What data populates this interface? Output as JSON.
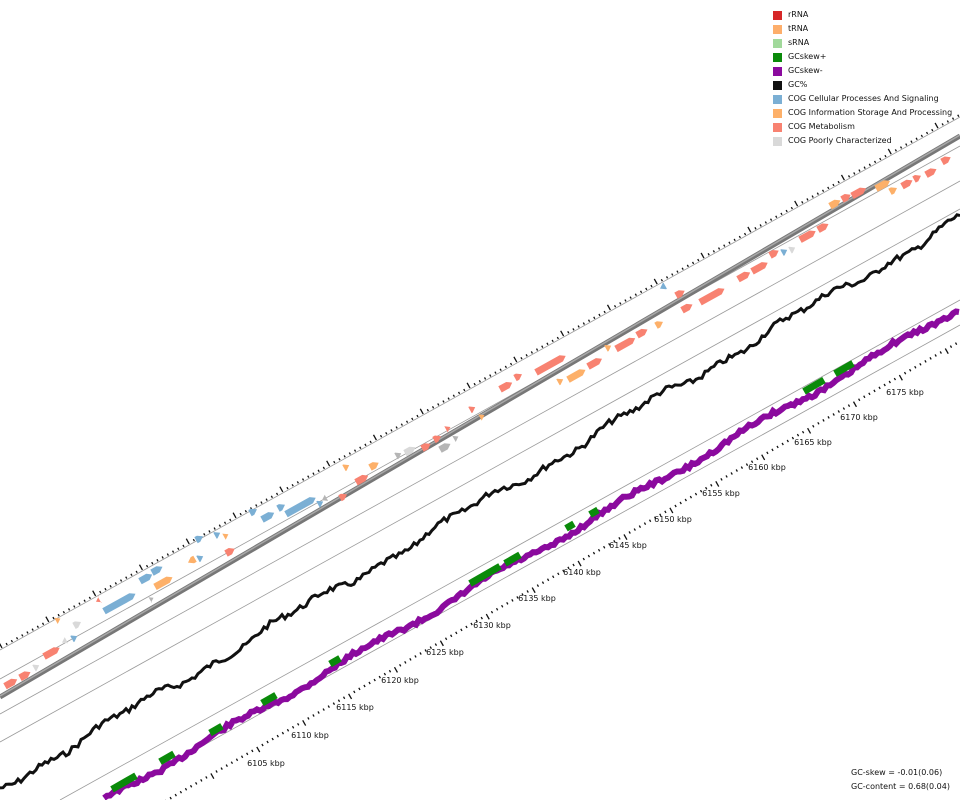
{
  "legend": [
    {
      "label": "rRNA",
      "color": "#d62728"
    },
    {
      "label": "tRNA",
      "color": "#fdae6b"
    },
    {
      "label": "sRNA",
      "color": "#a1d99b"
    },
    {
      "label": "GCskew+",
      "color": "#0a8a0a"
    },
    {
      "label": "GCskew-",
      "color": "#8b0a9e"
    },
    {
      "label": "GC%",
      "color": "#111111"
    },
    {
      "label": "COG Cellular Processes And Signaling",
      "color": "#7bafd4"
    },
    {
      "label": "COG Information Storage And Processing",
      "color": "#fdb069"
    },
    {
      "label": "COG Metabolism",
      "color": "#f88271"
    },
    {
      "label": "COG Poorly Characterized",
      "color": "#d9d9d9"
    }
  ],
  "chart_data": {
    "type": "genome-map",
    "axis_unit": "kbp",
    "ticks": [
      {
        "label": "6105 kbp"
      },
      {
        "label": "6110 kbp"
      },
      {
        "label": "6115 kbp"
      },
      {
        "label": "6120 kbp"
      },
      {
        "label": "6125 kbp"
      },
      {
        "label": "6130 kbp"
      },
      {
        "label": "6135 kbp"
      },
      {
        "label": "6140 kbp"
      },
      {
        "label": "6145 kbp"
      },
      {
        "label": "6150 kbp"
      },
      {
        "label": "6155 kbp"
      },
      {
        "label": "6160 kbp"
      },
      {
        "label": "6165 kbp"
      },
      {
        "label": "6170 kbp"
      },
      {
        "label": "6175 kbp"
      }
    ],
    "stats": {
      "gc_skew": "GC-skew = -0.01(0.06)",
      "gc_content": "GC-content = 0.68(0.04)"
    }
  }
}
